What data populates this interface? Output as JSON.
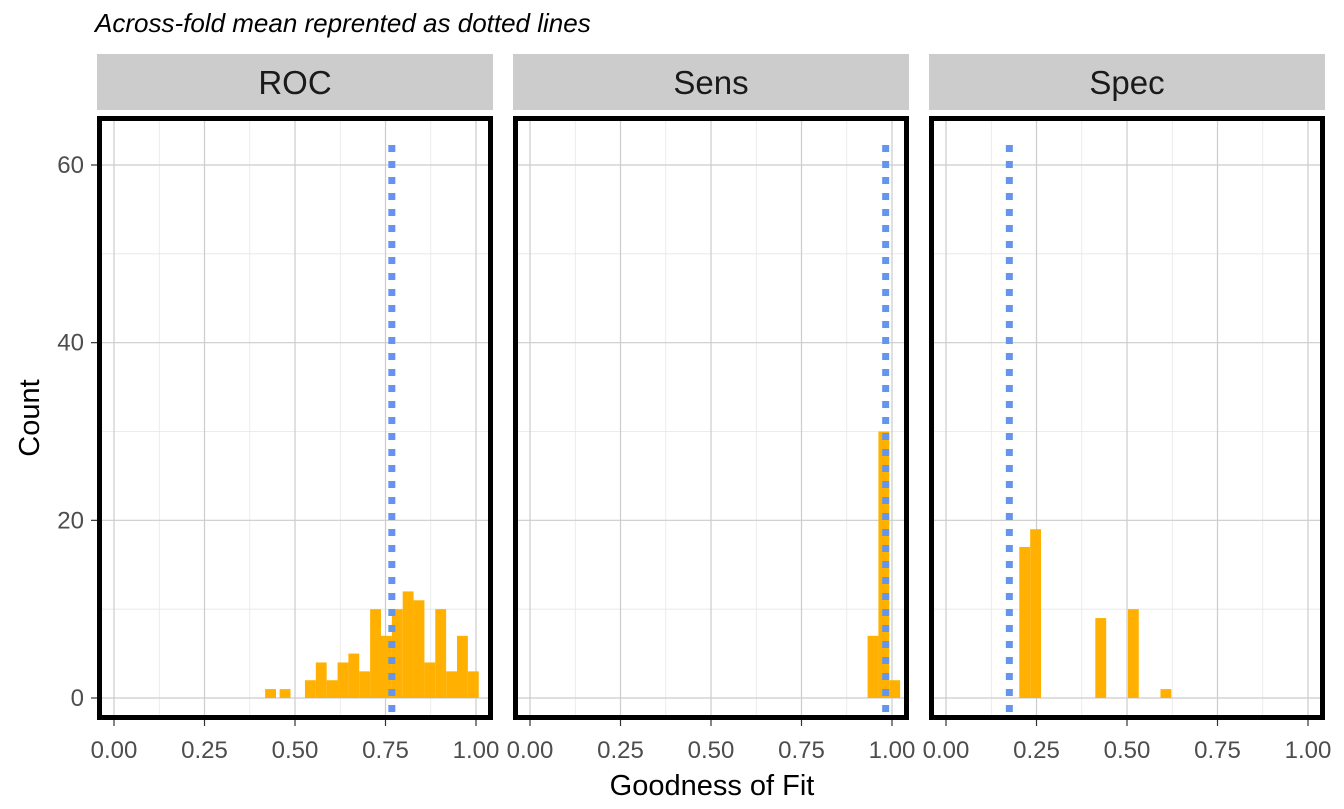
{
  "chart_data": {
    "type": "bar",
    "subtitle": "Across-fold mean reprented as dotted lines",
    "xlabel": "Goodness of Fit",
    "ylabel": "Count",
    "xlim": [
      0,
      1
    ],
    "ylim": [
      -2.5,
      65
    ],
    "x_ticks": [
      0,
      0.25,
      0.5,
      0.75,
      1.0
    ],
    "x_tick_labels": [
      "0.00",
      "0.25",
      "0.50",
      "0.75",
      "1.00"
    ],
    "y_ticks": [
      0,
      20,
      40,
      60
    ],
    "y_tick_labels": [
      "0",
      "20",
      "40",
      "60"
    ],
    "bin_width": 0.03,
    "grid": true,
    "colors": {
      "bars": "#FFB000",
      "mean_line": "#6495ED",
      "panel_border": "#000000",
      "strip": "#cccccc",
      "grid": "#cccccc"
    },
    "panels": [
      {
        "name": "ROC",
        "mean": 0.7675,
        "bins": [
          {
            "x": 0.4325,
            "count": 1
          },
          {
            "x": 0.4725,
            "count": 1
          },
          {
            "x": 0.5425,
            "count": 2
          },
          {
            "x": 0.5725,
            "count": 4
          },
          {
            "x": 0.6025,
            "count": 2
          },
          {
            "x": 0.6325,
            "count": 4
          },
          {
            "x": 0.6625,
            "count": 5
          },
          {
            "x": 0.6925,
            "count": 3
          },
          {
            "x": 0.7225,
            "count": 10
          },
          {
            "x": 0.7525,
            "count": 7
          },
          {
            "x": 0.7825,
            "count": 10
          },
          {
            "x": 0.8125,
            "count": 12
          },
          {
            "x": 0.8425,
            "count": 11
          },
          {
            "x": 0.8725,
            "count": 4
          },
          {
            "x": 0.9025,
            "count": 10
          },
          {
            "x": 0.9325,
            "count": 3
          },
          {
            "x": 0.9625,
            "count": 7
          },
          {
            "x": 0.9925,
            "count": 3
          }
        ]
      },
      {
        "name": "Sens",
        "mean": 0.9825,
        "bins": [
          {
            "x": 0.9475,
            "count": 7
          },
          {
            "x": 0.9775,
            "count": 30
          },
          {
            "x": 1.0075,
            "count": 2
          }
        ]
      },
      {
        "name": "Spec",
        "mean": 0.175,
        "bins": [
          {
            "x": 0.2175,
            "count": 17
          },
          {
            "x": 0.2475,
            "count": 19
          },
          {
            "x": 0.4275,
            "count": 9
          },
          {
            "x": 0.5175,
            "count": 10
          },
          {
            "x": 0.6075,
            "count": 1
          }
        ]
      }
    ]
  }
}
